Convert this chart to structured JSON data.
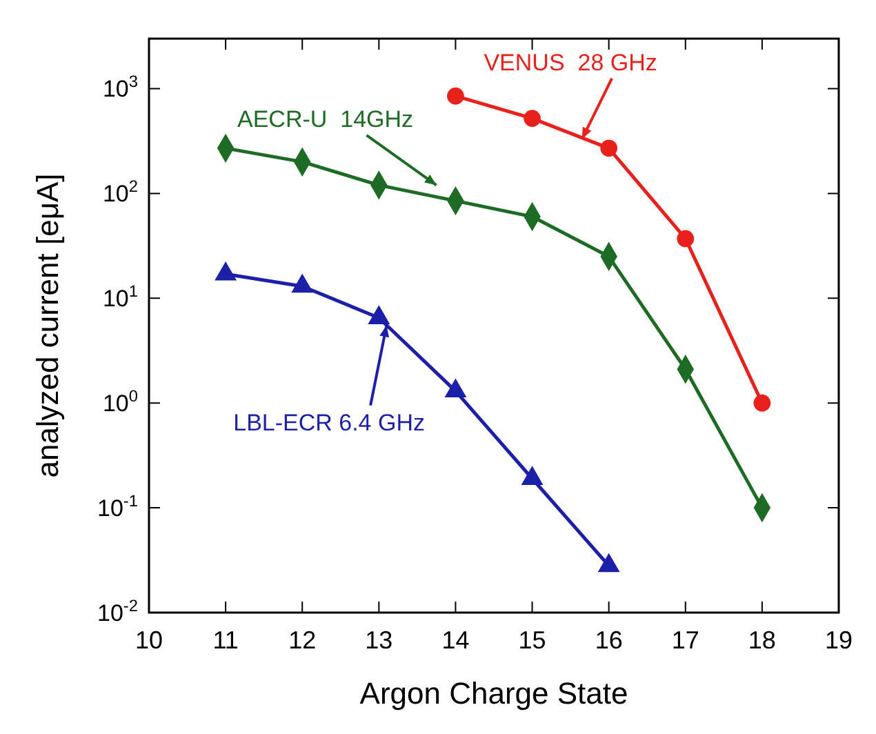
{
  "chart_data": {
    "type": "line",
    "xlabel": "Argon Charge State",
    "ylabel": "analyzed current [eμA]",
    "log": "y",
    "grid": false,
    "line_style": "solid",
    "xlim": [
      10,
      19
    ],
    "xticks": [
      10,
      11,
      12,
      13,
      14,
      15,
      16,
      17,
      18,
      19
    ],
    "ylim": [
      0.01,
      3000
    ],
    "yticks": [
      {
        "value": 0.01,
        "label": "10$^{-2}$"
      },
      {
        "value": 0.1,
        "label": "10$^{-1}$"
      },
      {
        "value": 1,
        "label": "10$^{0}$"
      },
      {
        "value": 10,
        "label": "10$^{1}$"
      },
      {
        "value": 100,
        "label": "10$^{2}$"
      },
      {
        "value": 1000,
        "label": "10$^{3}$"
      }
    ],
    "series": [
      {
        "name": "VENUS  28 GHz",
        "color": "#e8211c",
        "marker": "circle",
        "x": [
          14,
          15,
          16,
          17,
          18
        ],
        "values": [
          850,
          520,
          270,
          37,
          1.0
        ]
      },
      {
        "name": "AECR-U  14GHz",
        "color": "#1d6b24",
        "marker": "diamond",
        "x": [
          11,
          12,
          13,
          14,
          15,
          16,
          17,
          18
        ],
        "values": [
          270,
          200,
          120,
          85,
          60,
          25,
          2.1,
          0.1
        ]
      },
      {
        "name": "LBL-ECR 6.4 GHz",
        "color": "#1c1fa8",
        "marker": "triangle",
        "x": [
          11,
          12,
          13,
          14,
          15,
          16
        ],
        "values": [
          17,
          13,
          6.5,
          1.3,
          0.19,
          0.028
        ]
      }
    ]
  }
}
